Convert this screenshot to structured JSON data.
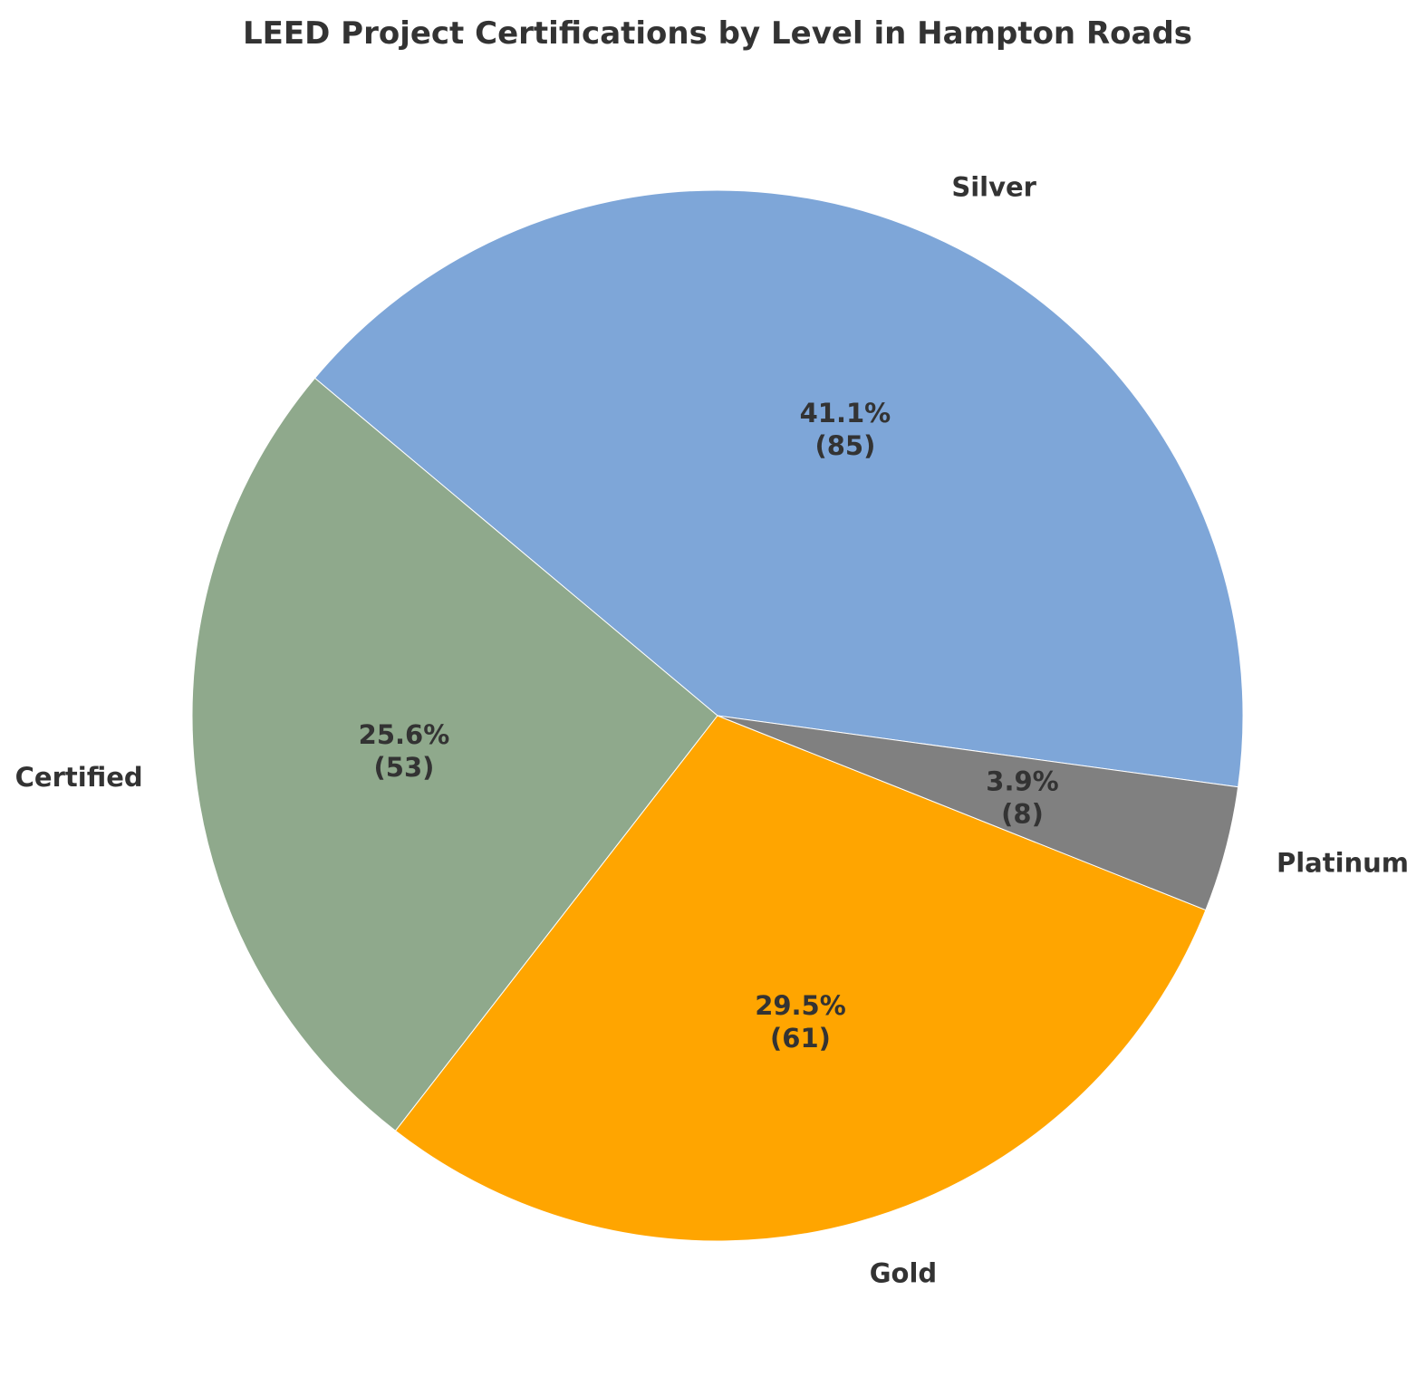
{
  "chart_data": {
    "type": "pie",
    "title": "LEED Project Certifications by Level in Hampton Roads",
    "categories": [
      "Silver",
      "Certified",
      "Gold",
      "Platinum"
    ],
    "values": [
      85,
      53,
      61,
      8
    ],
    "percentages": [
      "41.1%",
      "25.6%",
      "29.5%",
      "3.9%"
    ],
    "count_labels": [
      "(85)",
      "(53)",
      "(61)",
      "(8)"
    ],
    "colors": [
      "#7ea6d8",
      "#8fa98c",
      "#ffa500",
      "#808080"
    ],
    "legend": "none"
  }
}
